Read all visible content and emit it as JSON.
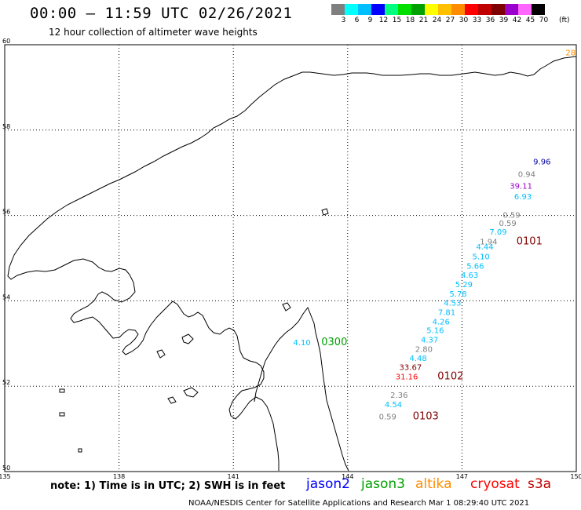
{
  "header": {
    "title": "00:00 – 11:59 UTC 02/26/2021",
    "subtitle": "12 hour collection of altimeter wave heights"
  },
  "legend": {
    "colors": [
      "#7f7f7f",
      "#00ffff",
      "#00bfff",
      "#0000ff",
      "#00ff7f",
      "#00e000",
      "#00a000",
      "#ffff00",
      "#ffc000",
      "#ff8c00",
      "#ff0000",
      "#c00000",
      "#7f0000",
      "#9900cc",
      "#ff66ff",
      "#000000"
    ],
    "labels": [
      "3",
      "6",
      "9",
      "12",
      "15",
      "18",
      "21",
      "24",
      "27",
      "30",
      "33",
      "36",
      "39",
      "42",
      "45",
      "70"
    ],
    "unit": "(ft)"
  },
  "map": {
    "lon_ticks": [
      "135",
      "138",
      "141",
      "144",
      "147",
      "150"
    ],
    "lat_ticks": [
      "60",
      "58",
      "56",
      "54",
      "52",
      "50"
    ],
    "observations": [
      {
        "text": "28",
        "lon": 149.85,
        "lat": 59.75,
        "color": "#ff8c00"
      },
      {
        "text": "9.96",
        "lon": 149.1,
        "lat": 57.2,
        "color": "#0000a0"
      },
      {
        "text": "0.94",
        "lon": 148.7,
        "lat": 56.9,
        "color": "#7f7f7f"
      },
      {
        "text": "39.11",
        "lon": 148.55,
        "lat": 56.63,
        "color": "#9900cc"
      },
      {
        "text": "6.93",
        "lon": 148.6,
        "lat": 56.38,
        "color": "#00bfff"
      },
      {
        "text": "0.59",
        "lon": 148.3,
        "lat": 55.95,
        "color": "#7f7f7f"
      },
      {
        "text": "0.59",
        "lon": 148.2,
        "lat": 55.75,
        "color": "#7f7f7f"
      },
      {
        "text": "7.09",
        "lon": 147.95,
        "lat": 55.55,
        "color": "#00bfff"
      },
      {
        "text": "1.94",
        "lon": 147.7,
        "lat": 55.32,
        "color": "#7f7f7f"
      },
      {
        "text": "0101",
        "lon": 148.77,
        "lat": 55.32,
        "color": "#7f0000"
      },
      {
        "text": "4.44",
        "lon": 147.6,
        "lat": 55.2,
        "color": "#00bfff"
      },
      {
        "text": "5.10",
        "lon": 147.5,
        "lat": 54.97,
        "color": "#00bfff"
      },
      {
        "text": "5.66",
        "lon": 147.35,
        "lat": 54.75,
        "color": "#00bfff"
      },
      {
        "text": "4.63",
        "lon": 147.2,
        "lat": 54.54,
        "color": "#00bfff"
      },
      {
        "text": "5.29",
        "lon": 147.05,
        "lat": 54.32,
        "color": "#00bfff"
      },
      {
        "text": "5.78",
        "lon": 146.9,
        "lat": 54.1,
        "color": "#00bfff"
      },
      {
        "text": "4.53",
        "lon": 146.75,
        "lat": 53.89,
        "color": "#00bfff"
      },
      {
        "text": "7.81",
        "lon": 146.6,
        "lat": 53.67,
        "color": "#00bfff"
      },
      {
        "text": "4.26",
        "lon": 146.45,
        "lat": 53.45,
        "color": "#00bfff"
      },
      {
        "text": "5.16",
        "lon": 146.3,
        "lat": 53.24,
        "color": "#00bfff"
      },
      {
        "text": "4.37",
        "lon": 146.15,
        "lat": 53.02,
        "color": "#00bfff"
      },
      {
        "text": "2.80",
        "lon": 146.0,
        "lat": 52.8,
        "color": "#7f7f7f"
      },
      {
        "text": "4.48",
        "lon": 145.85,
        "lat": 52.59,
        "color": "#00bfff"
      },
      {
        "text": "33.67",
        "lon": 145.65,
        "lat": 52.38,
        "color": "#7f0000"
      },
      {
        "text": "31.16",
        "lon": 145.55,
        "lat": 52.16,
        "color": "#ff0000"
      },
      {
        "text": "0102",
        "lon": 146.7,
        "lat": 52.16,
        "color": "#7f0000"
      },
      {
        "text": "2.36",
        "lon": 145.35,
        "lat": 51.73,
        "color": "#7f7f7f"
      },
      {
        "text": "4.54",
        "lon": 145.2,
        "lat": 51.51,
        "color": "#00bfff"
      },
      {
        "text": "0.59",
        "lon": 145.05,
        "lat": 51.22,
        "color": "#7f7f7f"
      },
      {
        "text": "0103",
        "lon": 146.05,
        "lat": 51.22,
        "color": "#7f0000"
      },
      {
        "text": "4.10",
        "lon": 142.8,
        "lat": 52.96,
        "color": "#00bfff"
      },
      {
        "text": "0300",
        "lon": 143.65,
        "lat": 52.96,
        "color": "#00a000"
      }
    ]
  },
  "footer": {
    "note": "note: 1) Time is in UTC; 2) SWH is in feet",
    "satellites": [
      {
        "name": "jason2",
        "color": "#0000ff"
      },
      {
        "name": "jason3",
        "color": "#00a000"
      },
      {
        "name": "altika",
        "color": "#ff8c00"
      },
      {
        "name": "cryosat",
        "color": "#ff0000"
      },
      {
        "name": "s3a",
        "color": "#c00000"
      }
    ],
    "credit": "NOAA/NESDIS Center for Satellite Applications and Research    Mar  1 08:29:40 UTC 2021"
  }
}
